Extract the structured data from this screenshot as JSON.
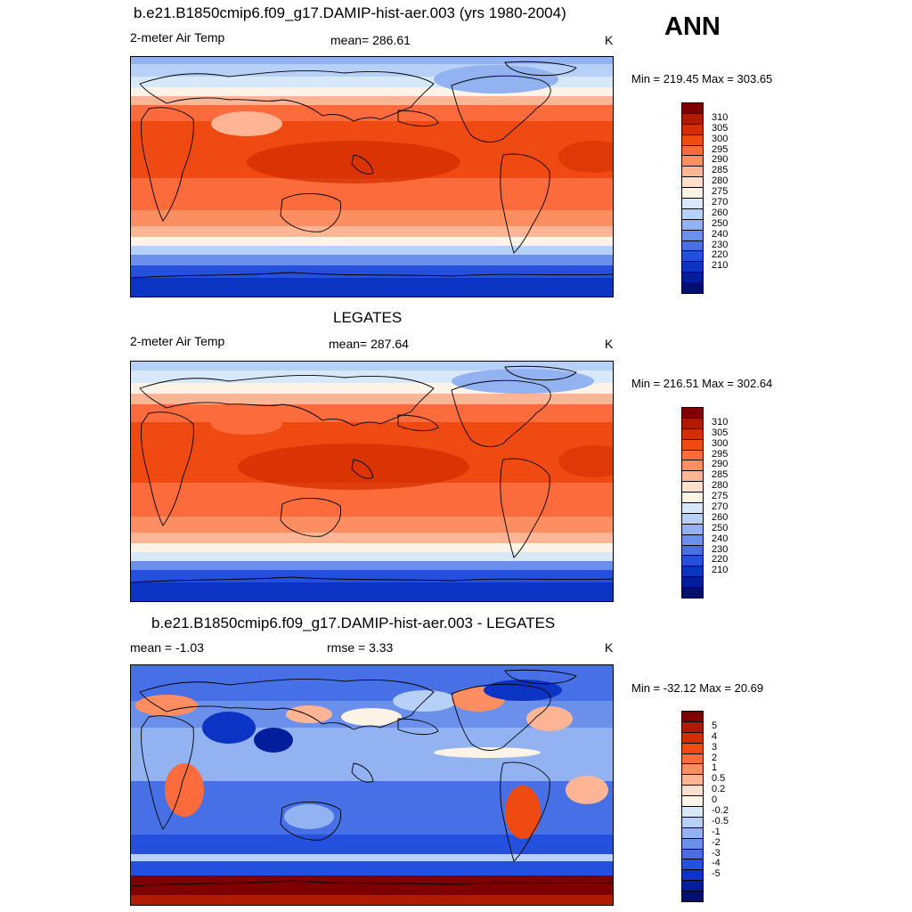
{
  "season": "ANN",
  "panels": [
    {
      "title": "b.e21.B1850cmip6.f09_g17.DAMIP-hist-aer.003 (yrs 1980-2004)",
      "left_label": "2-meter Air Temp",
      "center_label": "mean= 286.61",
      "units": "K",
      "minmax": "Min = 219.45 Max = 303.65",
      "palette": "temperature"
    },
    {
      "title": "LEGATES",
      "left_label": "2-meter Air Temp",
      "center_label": "mean= 287.64",
      "units": "K",
      "minmax": "Min = 216.51 Max = 302.64",
      "palette": "temperature"
    },
    {
      "title": "b.e21.B1850cmip6.f09_g17.DAMIP-hist-aer.003 - LEGATES",
      "left_label": "mean =  -1.03",
      "center_label": "rmse =   3.33",
      "units": "K",
      "minmax": "Min = -32.12 Max =  20.69",
      "palette": "difference"
    }
  ],
  "colorbars": {
    "temperature": {
      "colors": [
        "#7f0000",
        "#b01a00",
        "#d42e00",
        "#ee4a12",
        "#fb6b3b",
        "#fc8e62",
        "#fdb596",
        "#fedfcb",
        "#fdf3e6",
        "#d8e8fb",
        "#b7d0f7",
        "#92b2f2",
        "#6a90ec",
        "#4770e6",
        "#2550de",
        "#0b33c4",
        "#021e9c",
        "#010f6e"
      ],
      "labels": [
        "310",
        "305",
        "300",
        "295",
        "290",
        "285",
        "280",
        "275",
        "270",
        "260",
        "250",
        "240",
        "230",
        "220",
        "210"
      ]
    },
    "difference": {
      "colors": [
        "#7f0000",
        "#b01a00",
        "#d42e00",
        "#ee4a12",
        "#fb6b3b",
        "#fc8e62",
        "#fdb596",
        "#fedfcb",
        "#fdf3e6",
        "#d8e8fb",
        "#b7d0f7",
        "#92b2f2",
        "#6a90ec",
        "#4770e6",
        "#2550de",
        "#0b33c4",
        "#021e9c",
        "#010f6e"
      ],
      "labels": [
        "5",
        "4",
        "3",
        "2",
        "1",
        "0.5",
        "0.2",
        "0",
        "-0.2",
        "-0.5",
        "-1",
        "-2",
        "-3",
        "-4",
        "-5"
      ]
    }
  }
}
